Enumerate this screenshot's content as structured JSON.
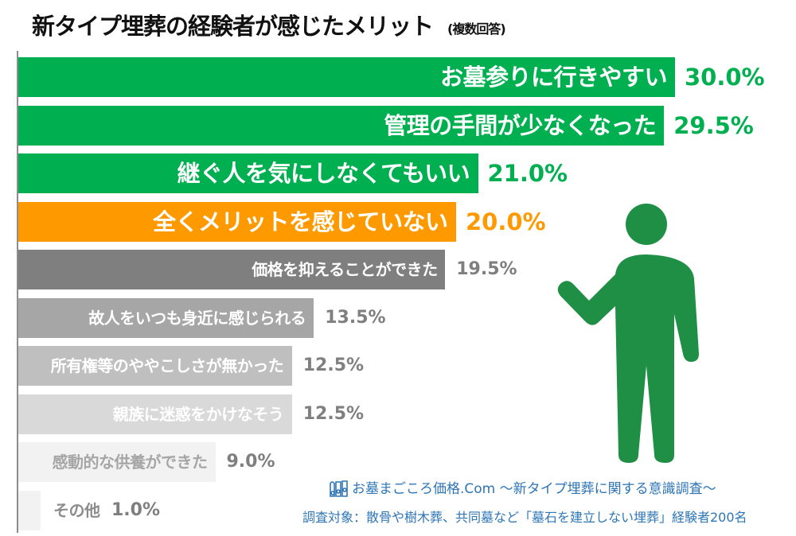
{
  "title": "新タイプ埋葬の経験者が感じたメリット",
  "subtitle": "(複数回答)",
  "chart_data": {
    "type": "bar",
    "orientation": "horizontal",
    "title": "新タイプ埋葬の経験者が感じたメリット",
    "subtitle": "(複数回答)",
    "categories": [
      "お墓参りに行きやすい",
      "管理の手間が少なくなった",
      "継ぐ人を気にしなくてもいい",
      "全くメリットを感じていない",
      "価格を抑えることができた",
      "故人をいつも身近に感じられる",
      "所有権等のややこしさが無かった",
      "親族に迷惑をかけなそう",
      "感動的な供養ができた",
      "その他"
    ],
    "values": [
      30.0,
      29.5,
      21.0,
      20.0,
      19.5,
      13.5,
      12.5,
      12.5,
      9.0,
      1.0
    ],
    "value_labels": [
      "30.0%",
      "29.5%",
      "21.0%",
      "20.0%",
      "19.5%",
      "13.5%",
      "12.5%",
      "12.5%",
      "9.0%",
      "1.0%"
    ],
    "bar_colors": [
      "#00b050",
      "#00b050",
      "#00b050",
      "#ff9900",
      "#7f7f7f",
      "#a6a6a6",
      "#bfbfbf",
      "#d9d9d9",
      "#f2f2f2",
      "#f2f2f2"
    ],
    "label_colors": [
      "#ffffff",
      "#ffffff",
      "#ffffff",
      "#ffffff",
      "#ffffff",
      "#ffffff",
      "#ffffff",
      "#ffffff",
      "#a6a6a6",
      "#8c8c8c"
    ],
    "value_colors": [
      "#00b050",
      "#00b050",
      "#00b050",
      "#ff9900",
      "#7f7f7f",
      "#7f7f7f",
      "#7f7f7f",
      "#7f7f7f",
      "#7f7f7f",
      "#7f7f7f"
    ],
    "xlim": [
      0,
      30
    ],
    "grid": false,
    "legend": "none"
  },
  "figure_color": "#1f8f45",
  "footer": {
    "brand": "お墓まごころ価格.Com",
    "survey": "～新タイプ埋葬に関する意識調査～",
    "note": "調査対象：散骨や樹木葬、共同墓など「墓石を建立しない埋葬」経験者200名"
  }
}
